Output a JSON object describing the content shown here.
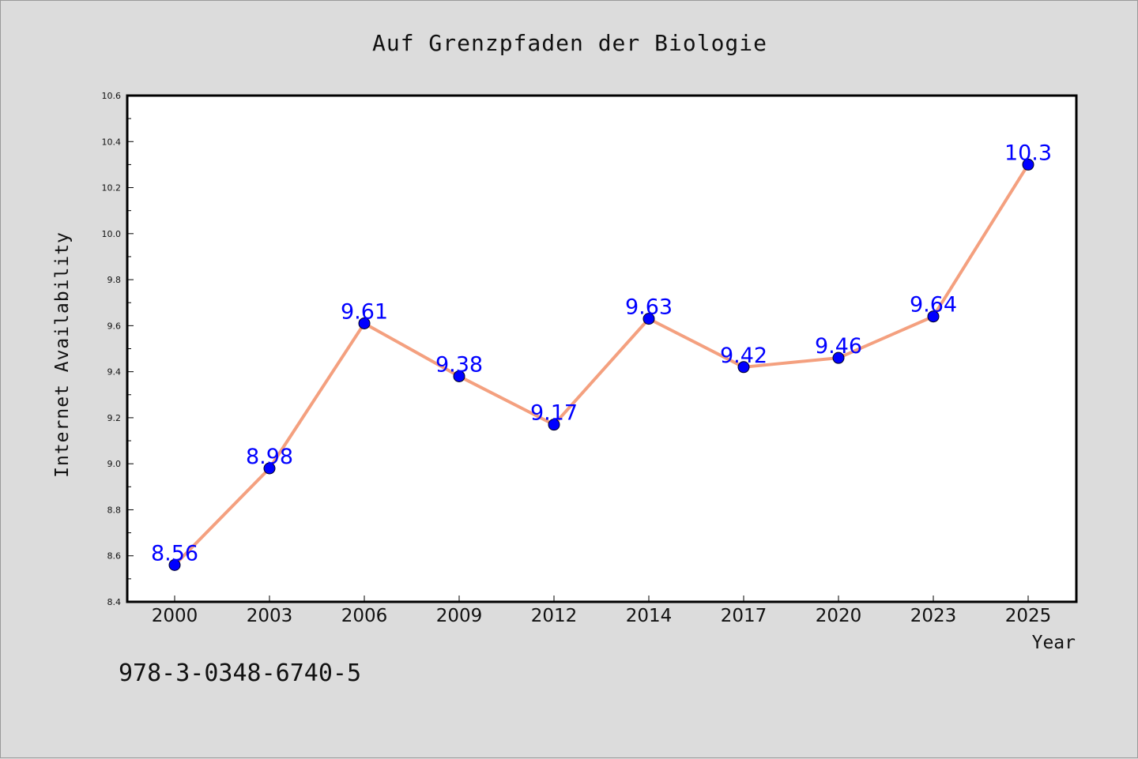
{
  "chart_data": {
    "type": "line",
    "title": "Auf Grenzpfaden der Biologie",
    "xlabel": "Year",
    "ylabel": "Internet Availability",
    "categories": [
      "2000",
      "2003",
      "2006",
      "2009",
      "2012",
      "2014",
      "2017",
      "2020",
      "2023",
      "2025"
    ],
    "series": [
      {
        "values": [
          8.56,
          8.98,
          9.61,
          9.38,
          9.17,
          9.63,
          9.42,
          9.46,
          9.64,
          10.3
        ],
        "labels": [
          "8.56",
          "8.98",
          "9.61",
          "9.38",
          "9.17",
          "9.63",
          "9.42",
          "9.46",
          "9.64",
          "10.3"
        ]
      }
    ],
    "ylim": [
      8.4,
      10.6
    ],
    "yticks": [
      "8.4",
      "8.6",
      "8.8",
      "9.0",
      "9.2",
      "9.4",
      "9.6",
      "9.8",
      "10.0",
      "10.2",
      "10.4",
      "10.6"
    ],
    "grid": false,
    "line_color": "#f4a07f",
    "marker_color": "#0000ff",
    "label_color": "#0000ff",
    "plot_background": "#ffffff",
    "figure_background": "#dcdcdc"
  },
  "footer": {
    "isbn": "978-3-0348-6740-5"
  }
}
